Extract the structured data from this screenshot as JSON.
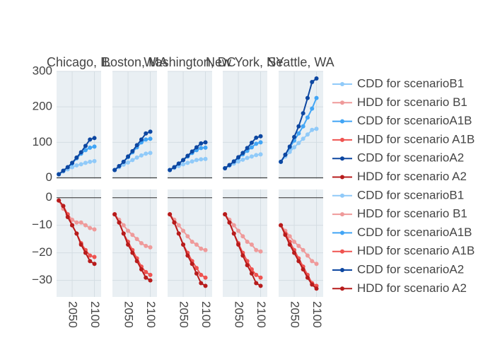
{
  "chart_data": {
    "type": "line",
    "layout": "small-multiples",
    "grid": true,
    "legend_position": "right",
    "x_ticks": [
      "2050",
      "2100"
    ],
    "xlim": [
      2015,
      2115
    ],
    "top_row": {
      "ylim": [
        -3,
        300
      ],
      "yticks": [
        "0",
        "100",
        "200",
        "300"
      ],
      "ytick_values": [
        0,
        100,
        200,
        300
      ]
    },
    "bottom_row": {
      "ylim": [
        -36,
        3
      ],
      "yticks": [
        "0",
        "−10",
        "−20",
        "−30"
      ],
      "ytick_values": [
        0,
        -10,
        -20,
        -30
      ]
    },
    "colors": {
      "cdd_B1": "#90caf9",
      "hdd_B1": "#ef9a9a",
      "cdd_A1B": "#42a5f5",
      "hdd_A1B": "#ef5350",
      "cdd_A2": "#0d47a1",
      "hdd_A2": "#b71c1c",
      "panel_bg": "#e9eff3",
      "grid": "#d4dde3",
      "zero_line": "#444444"
    },
    "legend": [
      {
        "label": "CDD for scenarioB1",
        "color": "#90caf9"
      },
      {
        "label": "HDD for scenario B1",
        "color": "#ef9a9a"
      },
      {
        "label": "CDD for scenarioA1B",
        "color": "#42a5f5"
      },
      {
        "label": "HDD for scenario A1B",
        "color": "#ef5350"
      },
      {
        "label": "CDD for scenarioA2",
        "color": "#0d47a1"
      },
      {
        "label": "HDD for scenario A2",
        "color": "#b71c1c"
      },
      {
        "label": "CDD for scenarioB1",
        "color": "#90caf9"
      },
      {
        "label": "HDD for scenario B1",
        "color": "#ef9a9a"
      },
      {
        "label": "CDD for scenarioA1B",
        "color": "#42a5f5"
      },
      {
        "label": "HDD for scenario A1B",
        "color": "#ef5350"
      },
      {
        "label": "CDD for scenarioA2",
        "color": "#0d47a1"
      },
      {
        "label": "HDD for scenario A2",
        "color": "#b71c1c"
      }
    ],
    "x": [
      2020,
      2030,
      2040,
      2050,
      2060,
      2070,
      2080,
      2090,
      2100
    ],
    "cities": [
      {
        "title": "Chicago, IL",
        "cdd": {
          "B1": [
            10,
            18,
            24,
            30,
            35,
            38,
            42,
            45,
            47
          ],
          "A1B": [
            10,
            20,
            30,
            40,
            55,
            68,
            78,
            85,
            88
          ],
          "A2": [
            10,
            20,
            30,
            42,
            57,
            72,
            90,
            108,
            112
          ]
        },
        "hdd": {
          "B1": [
            -1,
            -4,
            -6,
            -8,
            -9,
            -9,
            -10,
            -11,
            -11.5
          ],
          "A1B": [
            -1,
            -3,
            -6,
            -10,
            -13,
            -16.5,
            -19,
            -21,
            -21.5
          ],
          "A2": [
            -1,
            -3,
            -7,
            -10,
            -13,
            -17,
            -20,
            -23,
            -24
          ]
        }
      },
      {
        "title": "Boston, MA",
        "cdd": {
          "B1": [
            22,
            30,
            37,
            43,
            50,
            57,
            63,
            68,
            70
          ],
          "A1B": [
            22,
            33,
            45,
            58,
            72,
            86,
            100,
            108,
            110
          ],
          "A2": [
            22,
            33,
            45,
            60,
            75,
            92,
            108,
            125,
            130
          ]
        },
        "hdd": {
          "B1": [
            -6,
            -8,
            -10,
            -12,
            -13.5,
            -15,
            -16.5,
            -17.5,
            -18
          ],
          "A1B": [
            -6,
            -9,
            -13,
            -16,
            -19,
            -22,
            -25,
            -27,
            -28
          ],
          "A2": [
            -6,
            -9,
            -13,
            -17,
            -20,
            -23,
            -26,
            -29,
            -30
          ]
        }
      },
      {
        "title": "Washington, DC",
        "cdd": {
          "B1": [
            22,
            28,
            33,
            38,
            42,
            46,
            50,
            52,
            53
          ],
          "A1B": [
            22,
            30,
            40,
            50,
            60,
            70,
            78,
            84,
            85
          ],
          "A2": [
            22,
            30,
            40,
            50,
            62,
            74,
            86,
            97,
            100
          ]
        },
        "hdd": {
          "B1": [
            -6,
            -8,
            -10,
            -12,
            -14,
            -16,
            -17,
            -18.5,
            -19
          ],
          "A1B": [
            -6,
            -9,
            -13,
            -17,
            -20,
            -23,
            -25.5,
            -28,
            -29
          ],
          "A2": [
            -6,
            -9,
            -13,
            -17,
            -21,
            -24,
            -27.5,
            -31,
            -32
          ]
        }
      },
      {
        "title": "New York, NY",
        "cdd": {
          "B1": [
            27,
            34,
            40,
            46,
            51,
            56,
            60,
            64,
            66
          ],
          "A1B": [
            27,
            36,
            46,
            56,
            66,
            76,
            86,
            96,
            100
          ],
          "A2": [
            27,
            36,
            46,
            58,
            70,
            84,
            99,
            113,
            117
          ]
        },
        "hdd": {
          "B1": [
            -6,
            -8,
            -10,
            -12,
            -14,
            -16,
            -17,
            -19,
            -19.5
          ],
          "A1B": [
            -6,
            -9,
            -13,
            -16.5,
            -20,
            -23,
            -26,
            -28,
            -29
          ],
          "A2": [
            -6,
            -9,
            -13,
            -17,
            -21,
            -24.5,
            -27.5,
            -31,
            -32
          ]
        }
      },
      {
        "title": "Seattle, WA",
        "cdd": {
          "B1": [
            45,
            60,
            73,
            86,
            98,
            110,
            122,
            135,
            138
          ],
          "A1B": [
            45,
            65,
            85,
            105,
            125,
            145,
            170,
            195,
            225
          ],
          "A2": [
            45,
            65,
            88,
            115,
            145,
            182,
            225,
            270,
            280
          ]
        },
        "hdd": {
          "B1": [
            -10,
            -12,
            -14,
            -16,
            -17.5,
            -19,
            -21,
            -23,
            -24
          ],
          "A1B": [
            -10,
            -13,
            -16,
            -19,
            -22,
            -25,
            -28,
            -31,
            -32
          ],
          "A2": [
            -10,
            -13.5,
            -17,
            -20,
            -23,
            -26,
            -29,
            -31.5,
            -33
          ]
        }
      }
    ]
  }
}
